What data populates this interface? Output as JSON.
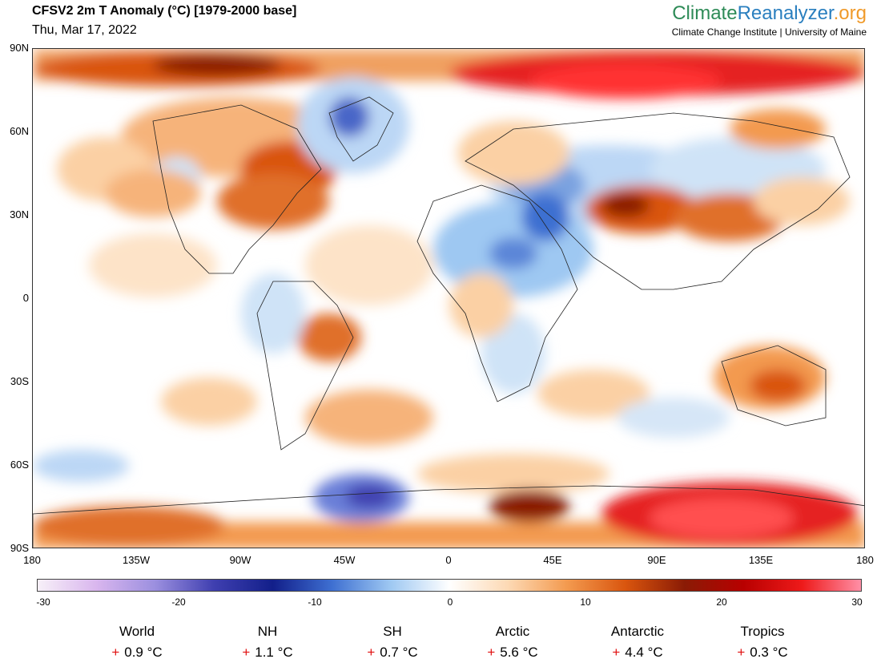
{
  "header": {
    "title": "CFSV2 2m T Anomaly (°C) [1979-2000 base]",
    "date": "Thu, Mar 17, 2022"
  },
  "brand": {
    "part1": "Climate",
    "part2": "Reanalyzer",
    "part3": ".org",
    "subtitle": "Climate Change Institute | University of Maine"
  },
  "map": {
    "lat_labels": [
      "90N",
      "60N",
      "30N",
      "0",
      "30S",
      "60S",
      "90S"
    ],
    "lon_labels": [
      "180",
      "135W",
      "90W",
      "45W",
      "0",
      "45E",
      "90E",
      "135E",
      "180"
    ]
  },
  "colorbar": {
    "ticks": [
      "-30",
      "-20",
      "-10",
      "0",
      "10",
      "20",
      "30"
    ],
    "range": [
      -30,
      30
    ],
    "colors_hex": [
      "#f7f0f8",
      "#d9b6ee",
      "#9b8fdf",
      "#3f3fb0",
      "#121f8a",
      "#3e6fd1",
      "#9ec8f2",
      "#ffffff",
      "#fdd9b4",
      "#f39a4f",
      "#d9550e",
      "#8a1b05",
      "#b80000",
      "#ee1a1a",
      "#ff8fa6"
    ]
  },
  "stats": [
    {
      "name": "World",
      "sign": "+",
      "value": "0.9 °C"
    },
    {
      "name": "NH",
      "sign": "+",
      "value": "1.1 °C"
    },
    {
      "name": "SH",
      "sign": "+",
      "value": "0.7 °C"
    },
    {
      "name": "Arctic",
      "sign": "+",
      "value": "5.6 °C"
    },
    {
      "name": "Antarctic",
      "sign": "+",
      "value": "4.4 °C"
    },
    {
      "name": "Tropics",
      "sign": "+",
      "value": "0.3 °C"
    }
  ]
}
